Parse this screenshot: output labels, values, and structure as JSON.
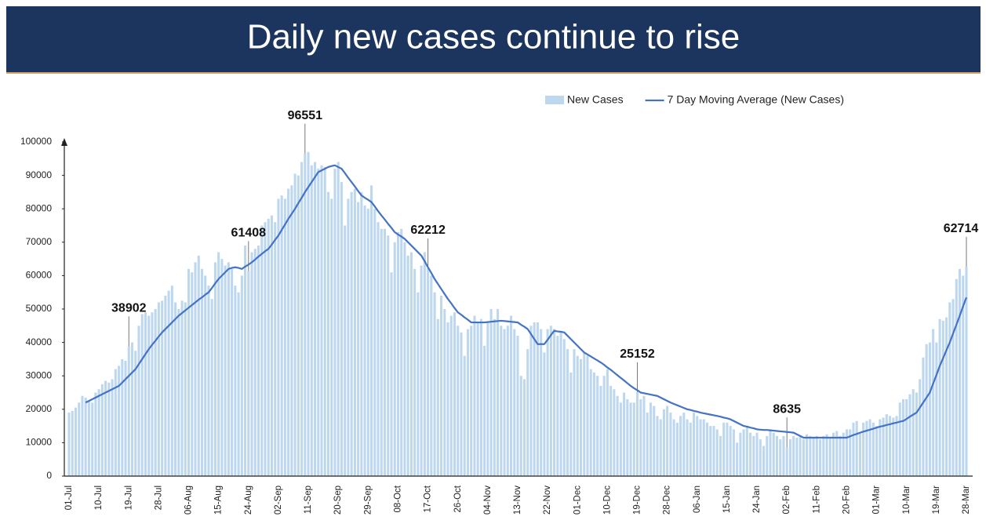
{
  "chart_data": {
    "type": "bar",
    "title": "Daily new cases continue to rise",
    "categories": [
      "01-Jul",
      null,
      null,
      null,
      null,
      null,
      null,
      null,
      null,
      "10-Jul",
      null,
      null,
      null,
      null,
      null,
      null,
      null,
      null,
      "19-Jul",
      null,
      null,
      null,
      null,
      null,
      null,
      null,
      null,
      "28-Jul",
      null,
      null,
      null,
      null,
      null,
      null,
      null,
      null,
      "06-Aug",
      null,
      null,
      null,
      null,
      null,
      null,
      null,
      null,
      "15-Aug",
      null,
      null,
      null,
      null,
      null,
      null,
      null,
      null,
      "24-Aug",
      null,
      null,
      null,
      null,
      null,
      null,
      null,
      null,
      "02-Sep",
      null,
      null,
      null,
      null,
      null,
      null,
      null,
      null,
      "11-Sep",
      null,
      null,
      null,
      null,
      null,
      null,
      null,
      null,
      "20-Sep",
      null,
      null,
      null,
      null,
      null,
      null,
      null,
      null,
      "29-Sep",
      null,
      null,
      null,
      null,
      null,
      null,
      null,
      null,
      "08-Oct",
      null,
      null,
      null,
      null,
      null,
      null,
      null,
      null,
      "17-Oct",
      null,
      null,
      null,
      null,
      null,
      null,
      null,
      null,
      "26-Oct",
      null,
      null,
      null,
      null,
      null,
      null,
      null,
      null,
      "04-Nov",
      null,
      null,
      null,
      null,
      null,
      null,
      null,
      null,
      "13-Nov",
      null,
      null,
      null,
      null,
      null,
      null,
      null,
      null,
      "22-Nov",
      null,
      null,
      null,
      null,
      null,
      null,
      null,
      null,
      "01-Dec",
      null,
      null,
      null,
      null,
      null,
      null,
      null,
      null,
      "10-Dec",
      null,
      null,
      null,
      null,
      null,
      null,
      null,
      null,
      "19-Dec",
      null,
      null,
      null,
      null,
      null,
      null,
      null,
      null,
      "28-Dec",
      null,
      null,
      null,
      null,
      null,
      null,
      null,
      null,
      "06-Jan",
      null,
      null,
      null,
      null,
      null,
      null,
      null,
      null,
      "15-Jan",
      null,
      null,
      null,
      null,
      null,
      null,
      null,
      null,
      "24-Jan",
      null,
      null,
      null,
      null,
      null,
      null,
      null,
      null,
      "02-Feb",
      null,
      null,
      null,
      null,
      null,
      null,
      null,
      null,
      "11-Feb",
      null,
      null,
      null,
      null,
      null,
      null,
      null,
      null,
      "20-Feb",
      null,
      null,
      null,
      null,
      null,
      null,
      null,
      null,
      "01-Mar",
      null,
      null,
      null,
      null,
      null,
      null,
      null,
      null,
      "10-Mar",
      null,
      null,
      null,
      null,
      null,
      null,
      null,
      null,
      "19-Mar",
      null,
      null,
      null,
      null,
      null,
      null,
      null,
      null,
      "28-Mar"
    ],
    "series": [
      {
        "name": "New Cases",
        "type": "bar",
        "color": "#bdd7ee",
        "values": [
          19000,
          19500,
          20500,
          22000,
          24000,
          23500,
          22500,
          22000,
          25000,
          26000,
          27500,
          28500,
          28000,
          29000,
          32000,
          33000,
          35000,
          34500,
          38902,
          40000,
          37500,
          45000,
          48500,
          49000,
          48000,
          49000,
          50000,
          52000,
          52500,
          54000,
          55500,
          57000,
          52000,
          50000,
          52500,
          52000,
          62000,
          61000,
          64000,
          66000,
          62000,
          60000,
          57000,
          53000,
          64000,
          67000,
          65000,
          63000,
          64000,
          62000,
          57000,
          55000,
          60000,
          69000,
          61408,
          67000,
          68000,
          69000,
          75000,
          76000,
          77000,
          78000,
          76000,
          83000,
          84000,
          83000,
          86000,
          87000,
          90500,
          90000,
          94000,
          96551,
          97000,
          93000,
          94000,
          92000,
          93000,
          92500,
          85000,
          83000,
          92000,
          94000,
          88000,
          75000,
          83000,
          85000,
          86000,
          82000,
          85000,
          81000,
          80000,
          87000,
          80000,
          76000,
          74000,
          74000,
          72000,
          61000,
          70000,
          73000,
          74000,
          70000,
          66000,
          67000,
          62000,
          55000,
          63000,
          67000,
          62212,
          60000,
          55000,
          47000,
          54000,
          50000,
          46000,
          48000,
          49000,
          45000,
          43000,
          36000,
          44000,
          45000,
          48000,
          46000,
          47000,
          39000,
          46000,
          50000,
          47000,
          50000,
          45000,
          44000,
          45000,
          48000,
          44000,
          42000,
          30000,
          29000,
          38000,
          45000,
          46000,
          46000,
          44000,
          37000,
          44000,
          45000,
          44000,
          42000,
          43000,
          41000,
          38000,
          31000,
          38000,
          36000,
          35000,
          37000,
          36000,
          32000,
          31000,
          30000,
          27000,
          30000,
          32000,
          27000,
          26000,
          24000,
          22000,
          25000,
          23000,
          22000,
          22000,
          25152,
          23000,
          24000,
          19000,
          22000,
          21000,
          18000,
          17000,
          20000,
          21000,
          19000,
          17000,
          16000,
          18000,
          19000,
          17000,
          16000,
          19000,
          18000,
          17000,
          17000,
          16000,
          15000,
          15000,
          14000,
          12000,
          16000,
          16000,
          15000,
          14000,
          10000,
          13000,
          14000,
          15000,
          13000,
          12000,
          13000,
          11000,
          9000,
          12000,
          14000,
          13000,
          12000,
          11000,
          12000,
          8635,
          11000,
          12000,
          11500,
          12000,
          11000,
          12500,
          12000,
          11500,
          12000,
          11000,
          12000,
          12500,
          11500,
          13000,
          13500,
          12000,
          13000,
          14000,
          14000,
          16000,
          16500,
          13000,
          16000,
          16500,
          17000,
          16000,
          15000,
          17000,
          17500,
          18500,
          18000,
          17500,
          18000,
          22000,
          23000,
          23000,
          24500,
          26000,
          25000,
          29000,
          35500,
          39500,
          40000,
          44000,
          40000,
          47000,
          46500,
          47500,
          52000,
          53000,
          59000,
          62000,
          60000,
          62714
        ],
        "value_labels": [
          null,
          null,
          null,
          null,
          null,
          null,
          null,
          null,
          null,
          null,
          null,
          null,
          null,
          null,
          null,
          null,
          null,
          null,
          "38902",
          null,
          null,
          null,
          null,
          null,
          null,
          null,
          null,
          null,
          null,
          null,
          null,
          null,
          null,
          null,
          null,
          null,
          null,
          null,
          null,
          null,
          null,
          null,
          null,
          null,
          null,
          null,
          null,
          null,
          null,
          null,
          null,
          null,
          null,
          null,
          "61408",
          null,
          null,
          null,
          null,
          null,
          null,
          null,
          null,
          null,
          null,
          null,
          null,
          null,
          null,
          null,
          null,
          "96551",
          null,
          null,
          null,
          null,
          null,
          null,
          null,
          null,
          null,
          null,
          null,
          null,
          null,
          null,
          null,
          null,
          null,
          null,
          null,
          null,
          null,
          null,
          null,
          null,
          null,
          null,
          null,
          null,
          null,
          null,
          null,
          null,
          null,
          null,
          null,
          null,
          "62212",
          null,
          null,
          null,
          null,
          null,
          null,
          null,
          null,
          null,
          null,
          null,
          null,
          null,
          null,
          null,
          null,
          null,
          null,
          null,
          null,
          null,
          null,
          null,
          null,
          null,
          null,
          null,
          null,
          null,
          null,
          null,
          null,
          null,
          null,
          null,
          null,
          null,
          null,
          null,
          null,
          null,
          null,
          null,
          null,
          null,
          null,
          null,
          null,
          null,
          null,
          null,
          null,
          null,
          null,
          null,
          null,
          null,
          null,
          null,
          null,
          null,
          null,
          "25152",
          null,
          null,
          null,
          null,
          null,
          null,
          null,
          null,
          null,
          null,
          null,
          null,
          null,
          null,
          null,
          null,
          null,
          null,
          null,
          null,
          null,
          null,
          null,
          null,
          null,
          null,
          null,
          null,
          null,
          null,
          null,
          null,
          null,
          null,
          null,
          null,
          null,
          null,
          null,
          null,
          null,
          null,
          null,
          null,
          "8635",
          null,
          null,
          null,
          null,
          null,
          null,
          null,
          null,
          null,
          null,
          null,
          null,
          null,
          null,
          null,
          null,
          null,
          null,
          null,
          null,
          null,
          null,
          null,
          null,
          null,
          null,
          null,
          null,
          null,
          null,
          null,
          null,
          null,
          null,
          null,
          null,
          null,
          null,
          null,
          null,
          null,
          null,
          null,
          null,
          null,
          null,
          null,
          null,
          null,
          null,
          null,
          null,
          null,
          "62714"
        ]
      },
      {
        "name": "7 Day Moving Average (New Cases)",
        "type": "line",
        "color": "#4472c4",
        "values": [
          null,
          null,
          null,
          null,
          null,
          22000,
          22500,
          23000,
          23500,
          24000,
          24500,
          25000,
          25500,
          26000,
          26500,
          27000,
          28000,
          29000,
          30000,
          31000,
          32000,
          33500,
          35000,
          36500,
          38000,
          39300,
          40500,
          41800,
          43000,
          44000,
          45000,
          46000,
          47000,
          48000,
          48800,
          49600,
          50400,
          51200,
          52000,
          52800,
          53500,
          54300,
          55000,
          56300,
          57700,
          59000,
          60000,
          61000,
          62000,
          62300,
          62500,
          62300,
          62000,
          62700,
          63300,
          64000,
          64800,
          65700,
          66500,
          67300,
          68000,
          69300,
          70700,
          72000,
          73700,
          75300,
          77000,
          78500,
          80000,
          81700,
          83300,
          85000,
          86500,
          88000,
          89500,
          91000,
          91500,
          92000,
          92500,
          92800,
          93000,
          92500,
          92000,
          90700,
          89300,
          88000,
          86700,
          85300,
          84000,
          83300,
          82700,
          82000,
          80700,
          79300,
          78000,
          76800,
          75500,
          74300,
          73000,
          72300,
          71700,
          71000,
          70000,
          69000,
          68000,
          67000,
          66000,
          64300,
          62500,
          60800,
          59000,
          57500,
          56000,
          54500,
          53000,
          51700,
          50300,
          49000,
          48300,
          47500,
          46800,
          46000,
          46000,
          46000,
          46000,
          46000,
          46100,
          46200,
          46300,
          46400,
          46500,
          46400,
          46300,
          46200,
          46100,
          46000,
          45300,
          44700,
          44000,
          42500,
          41000,
          39500,
          39500,
          39500,
          40800,
          42200,
          43500,
          43300,
          43200,
          43000,
          42000,
          41000,
          40000,
          39000,
          38000,
          37000,
          36400,
          35800,
          35200,
          34600,
          34000,
          33300,
          32500,
          31800,
          31000,
          30200,
          29400,
          28600,
          27800,
          27000,
          26300,
          25700,
          25000,
          24800,
          24600,
          24400,
          24200,
          24000,
          23500,
          23000,
          22500,
          22000,
          21600,
          21200,
          20800,
          20400,
          20000,
          19800,
          19500,
          19300,
          19000,
          18800,
          18600,
          18400,
          18200,
          18000,
          17800,
          17500,
          17300,
          17000,
          16500,
          16000,
          15500,
          15000,
          14800,
          14500,
          14300,
          14000,
          13900,
          13800,
          13800,
          13700,
          13600,
          13500,
          13400,
          13300,
          13200,
          13100,
          13000,
          12500,
          12000,
          11500,
          11500,
          11500,
          11500,
          11500,
          11500,
          11500,
          11500,
          11500,
          11500,
          11500,
          11500,
          11500,
          11500,
          11900,
          12300,
          12600,
          13000,
          13300,
          13600,
          13900,
          14200,
          14500,
          14800,
          15000,
          15300,
          15500,
          15800,
          16000,
          16300,
          16500,
          17100,
          17800,
          18400,
          19000,
          20500,
          22000,
          23500,
          25000,
          27700,
          30300,
          33000,
          35300,
          37700,
          40000,
          42700,
          45300,
          48000,
          50800,
          53500
        ]
      }
    ],
    "ylim": [
      0,
      100000
    ],
    "yticks": [
      0,
      10000,
      20000,
      30000,
      40000,
      50000,
      60000,
      70000,
      80000,
      90000,
      100000
    ],
    "legend": "top-right"
  }
}
